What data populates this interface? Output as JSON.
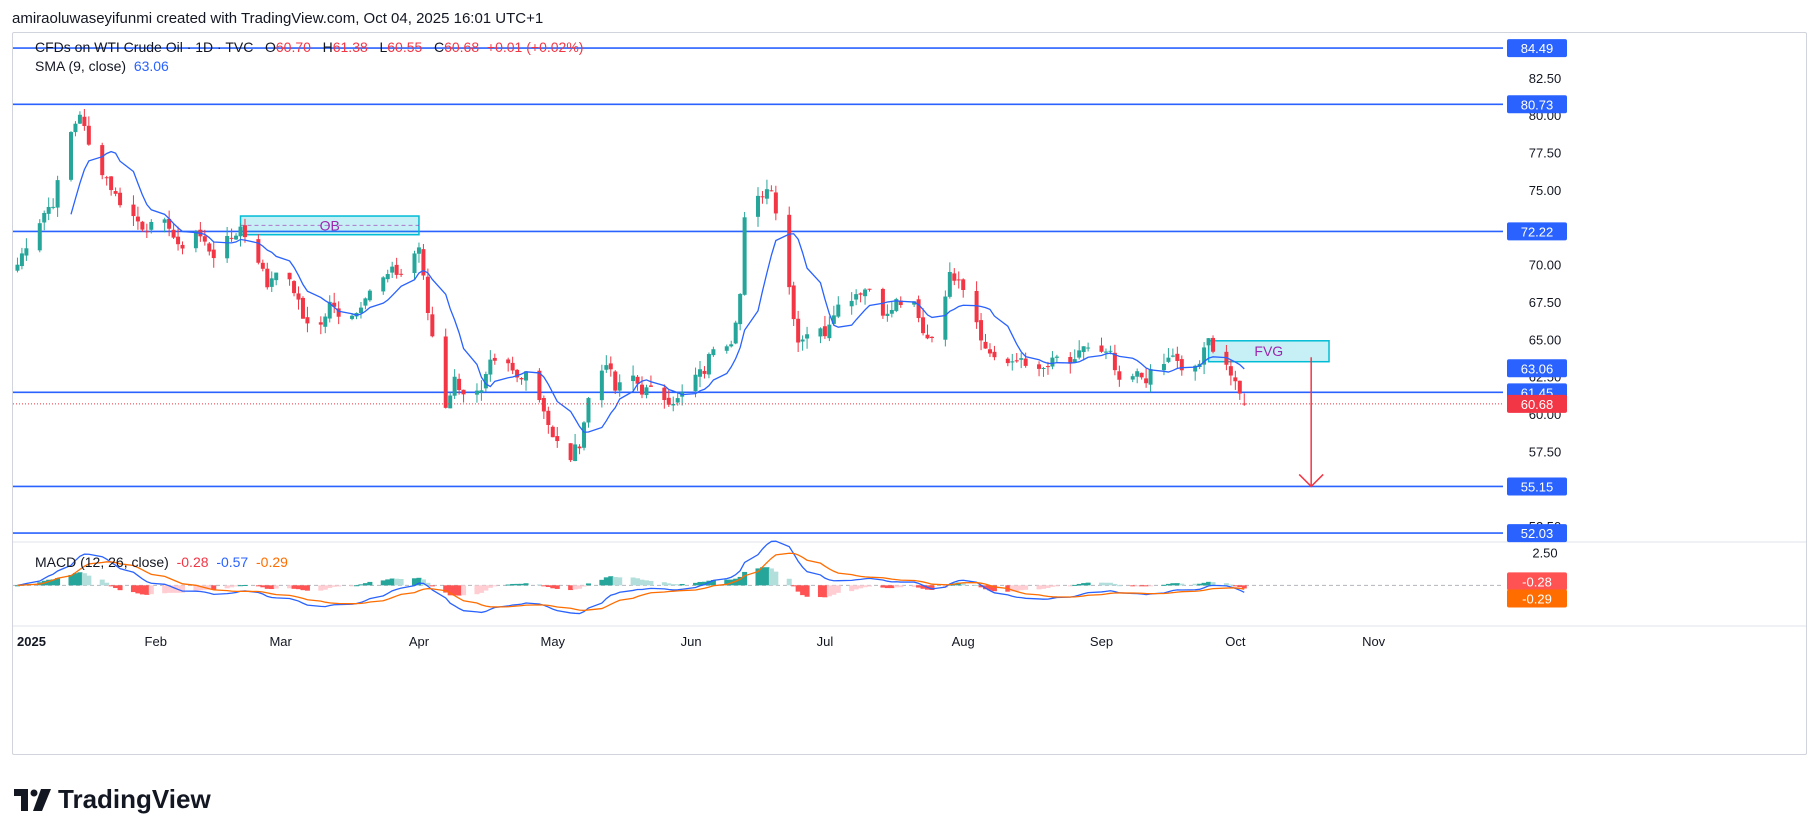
{
  "header": {
    "credit": "amiraoluwaseyifunmi created with TradingView.com, Oct 04, 2025 16:01 UTC+1"
  },
  "legend": {
    "symbol": "CFDs on WTI Crude Oil · 1D · TVC",
    "o_label": "O",
    "o": "60.70",
    "h_label": "H",
    "h": "61.38",
    "l_label": "L",
    "l": "60.55",
    "c_label": "C",
    "c": "60.68",
    "change": "+0.01 (+0.02%)",
    "sma_label": "SMA (9, close)",
    "sma_value": "63.06",
    "macd_label": "MACD (12, 26, close)",
    "macd_hist": "-0.28",
    "macd_line": "-0.57",
    "macd_signal": "-0.29"
  },
  "logo": {
    "text": "TradingView"
  },
  "colors": {
    "up": "#26a69a",
    "down": "#f23645",
    "sma": "#2962ff",
    "level": "#2962ff",
    "zone": "#00bcd4",
    "zone_label": "#9c27b0",
    "signal": "#ff6d00",
    "arrow": "#f23645"
  },
  "chart_data": [
    {
      "type": "candlestick",
      "symbol": "CFDs on WTI Crude Oil",
      "interval": "1D",
      "ylim": [
        51.5,
        85.5
      ],
      "y_ticks": [
        "82.50",
        "80.00",
        "77.50",
        "75.00",
        "72.50",
        "70.00",
        "67.50",
        "65.00",
        "62.50",
        "60.00",
        "57.50",
        "55.00",
        "52.50"
      ],
      "x_ticks": [
        "2025",
        "Feb",
        "Mar",
        "Apr",
        "May",
        "Jun",
        "Jul",
        "Aug",
        "Sep",
        "Oct",
        "Nov"
      ],
      "x_tick_dates": [
        "2025-01-01",
        "2025-02-01",
        "2025-03-01",
        "2025-04-01",
        "2025-05-01",
        "2025-06-01",
        "2025-07-01",
        "2025-08-01",
        "2025-09-01",
        "2025-10-01",
        "2025-11-01"
      ],
      "x_range": [
        "2024-12-31",
        "2025-11-30"
      ],
      "close_series": [
        [
          "2025-01-01",
          70.0
        ],
        [
          "2025-01-03",
          71.4
        ],
        [
          "2025-01-07",
          73.5
        ],
        [
          "2025-01-09",
          74.2
        ],
        [
          "2025-01-13",
          78.8
        ],
        [
          "2025-01-15",
          80.2
        ],
        [
          "2025-01-17",
          77.9
        ],
        [
          "2025-01-21",
          75.8
        ],
        [
          "2025-01-23",
          74.6
        ],
        [
          "2025-01-27",
          73.2
        ],
        [
          "2025-01-29",
          72.6
        ],
        [
          "2025-01-31",
          72.5
        ],
        [
          "2025-02-04",
          72.7
        ],
        [
          "2025-02-06",
          71.0
        ],
        [
          "2025-02-10",
          72.3
        ],
        [
          "2025-02-12",
          71.4
        ],
        [
          "2025-02-14",
          70.7
        ],
        [
          "2025-02-18",
          71.8
        ],
        [
          "2025-02-20",
          72.5
        ],
        [
          "2025-02-24",
          70.4
        ],
        [
          "2025-02-26",
          68.6
        ],
        [
          "2025-02-28",
          69.8
        ],
        [
          "2025-03-04",
          68.3
        ],
        [
          "2025-03-06",
          66.4
        ],
        [
          "2025-03-10",
          65.9
        ],
        [
          "2025-03-12",
          67.3
        ],
        [
          "2025-03-14",
          66.8
        ],
        [
          "2025-03-18",
          66.8
        ],
        [
          "2025-03-20",
          68.1
        ],
        [
          "2025-03-24",
          69.0
        ],
        [
          "2025-03-26",
          69.5
        ],
        [
          "2025-03-28",
          69.4
        ],
        [
          "2025-04-01",
          71.2
        ],
        [
          "2025-04-03",
          66.8
        ],
        [
          "2025-04-07",
          60.6
        ],
        [
          "2025-04-09",
          62.3
        ],
        [
          "2025-04-11",
          61.5
        ],
        [
          "2025-04-15",
          61.3
        ],
        [
          "2025-04-17",
          63.3
        ],
        [
          "2025-04-21",
          63.2
        ],
        [
          "2025-04-23",
          62.4
        ],
        [
          "2025-04-25",
          63.0
        ],
        [
          "2025-04-29",
          60.4
        ],
        [
          "2025-05-01",
          58.3
        ],
        [
          "2025-05-05",
          57.1
        ],
        [
          "2025-05-07",
          58.1
        ],
        [
          "2025-05-09",
          61.0
        ],
        [
          "2025-05-13",
          63.6
        ],
        [
          "2025-05-15",
          61.6
        ],
        [
          "2025-05-19",
          62.5
        ],
        [
          "2025-05-21",
          61.6
        ],
        [
          "2025-05-23",
          61.5
        ],
        [
          "2025-05-27",
          61.0
        ],
        [
          "2025-05-29",
          60.9
        ],
        [
          "2025-06-02",
          62.5
        ],
        [
          "2025-06-04",
          62.9
        ],
        [
          "2025-06-06",
          64.6
        ],
        [
          "2025-06-10",
          65.0
        ],
        [
          "2025-06-12",
          68.0
        ],
        [
          "2025-06-13",
          72.9
        ],
        [
          "2025-06-17",
          74.8
        ],
        [
          "2025-06-19",
          75.3
        ],
        [
          "2025-06-23",
          68.5
        ],
        [
          "2025-06-25",
          64.9
        ],
        [
          "2025-06-27",
          65.5
        ],
        [
          "2025-07-01",
          65.5
        ],
        [
          "2025-07-03",
          67.0
        ],
        [
          "2025-07-07",
          67.9
        ],
        [
          "2025-07-09",
          68.3
        ],
        [
          "2025-07-11",
          68.4
        ],
        [
          "2025-07-15",
          66.5
        ],
        [
          "2025-07-17",
          67.5
        ],
        [
          "2025-07-21",
          67.2
        ],
        [
          "2025-07-23",
          65.3
        ],
        [
          "2025-07-25",
          65.2
        ],
        [
          "2025-07-29",
          69.2
        ],
        [
          "2025-07-31",
          69.3
        ],
        [
          "2025-08-04",
          66.3
        ],
        [
          "2025-08-06",
          64.3
        ],
        [
          "2025-08-08",
          63.9
        ],
        [
          "2025-08-12",
          63.2
        ],
        [
          "2025-08-14",
          63.8
        ],
        [
          "2025-08-18",
          62.7
        ],
        [
          "2025-08-20",
          63.2
        ],
        [
          "2025-08-22",
          63.7
        ],
        [
          "2025-08-26",
          63.3
        ],
        [
          "2025-08-28",
          64.6
        ],
        [
          "2025-09-01",
          64.0
        ],
        [
          "2025-09-03",
          63.9
        ],
        [
          "2025-09-05",
          61.9
        ],
        [
          "2025-09-09",
          62.6
        ],
        [
          "2025-09-11",
          62.4
        ],
        [
          "2025-09-15",
          63.3
        ],
        [
          "2025-09-17",
          64.0
        ],
        [
          "2025-09-19",
          62.7
        ],
        [
          "2025-09-23",
          63.4
        ],
        [
          "2025-09-25",
          64.9
        ],
        [
          "2025-09-29",
          63.4
        ],
        [
          "2025-10-01",
          61.8
        ],
        [
          "2025-10-03",
          60.68
        ]
      ],
      "sma": {
        "period": 9,
        "value": "63.06"
      },
      "levels": [
        {
          "label": "84.49",
          "value": 84.49
        },
        {
          "label": "80.73",
          "value": 80.73
        },
        {
          "label": "72.22",
          "value": 72.22
        },
        {
          "label": "61.45",
          "value": 61.45
        },
        {
          "label": "55.15",
          "value": 55.15
        },
        {
          "label": "52.03",
          "value": 52.03
        }
      ],
      "price_labels": [
        {
          "label": "63.06",
          "value": 63.06,
          "kind": "sma"
        },
        {
          "label": "60.68",
          "value": 60.68,
          "kind": "last"
        }
      ],
      "zones": [
        {
          "label": "OB",
          "x_start": "2025-02-20",
          "x_end": "2025-04-01",
          "y_low": 72.0,
          "y_high": 73.25
        },
        {
          "label": "FVG",
          "x_start": "2025-09-25",
          "x_end": "2025-10-22",
          "y_low": 63.5,
          "y_high": 64.9
        }
      ],
      "arrow": {
        "x": "2025-10-18",
        "from": 63.8,
        "to": 55.15
      }
    },
    {
      "type": "macd",
      "params": "12, 26, close",
      "ylim": [
        -3.0,
        3.2
      ],
      "y_ticks": [
        "2.50"
      ],
      "current": {
        "histogram": -0.28,
        "macd": -0.57,
        "signal": -0.29
      },
      "price_labels": [
        {
          "label": "-0.28",
          "value": -0.28,
          "kind": "histogram"
        },
        {
          "label": "-0.29",
          "value": -0.29,
          "kind": "signal"
        }
      ]
    }
  ]
}
